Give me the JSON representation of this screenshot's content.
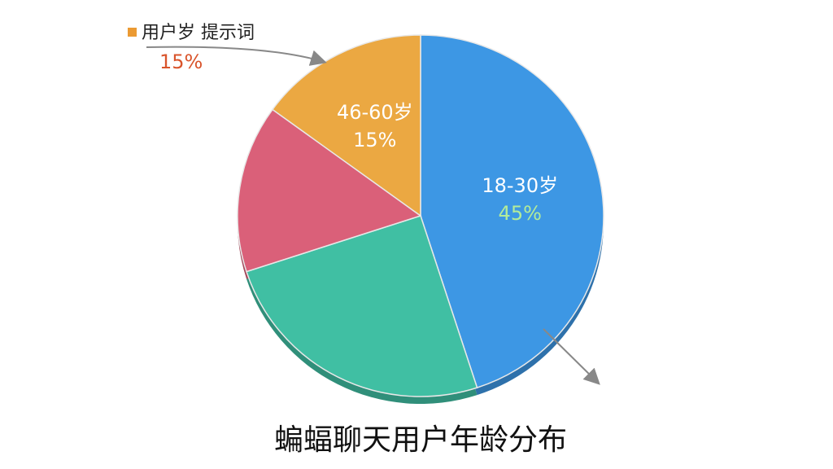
{
  "chart_data": {
    "type": "pie",
    "title": "蝙蝠聊天用户年龄分布",
    "categories": [
      "18-30岁",
      null,
      null,
      "46-60岁"
    ],
    "values": [
      45,
      25,
      15,
      15
    ],
    "value_labels": [
      "45%",
      null,
      null,
      "15%"
    ],
    "colors": [
      "#3d97e4",
      "#40bfa3",
      "#da6079",
      "#eba842"
    ],
    "legend": {
      "label": "用户岁 提示词",
      "value_label": "15%",
      "color": "#eb9a33"
    }
  }
}
